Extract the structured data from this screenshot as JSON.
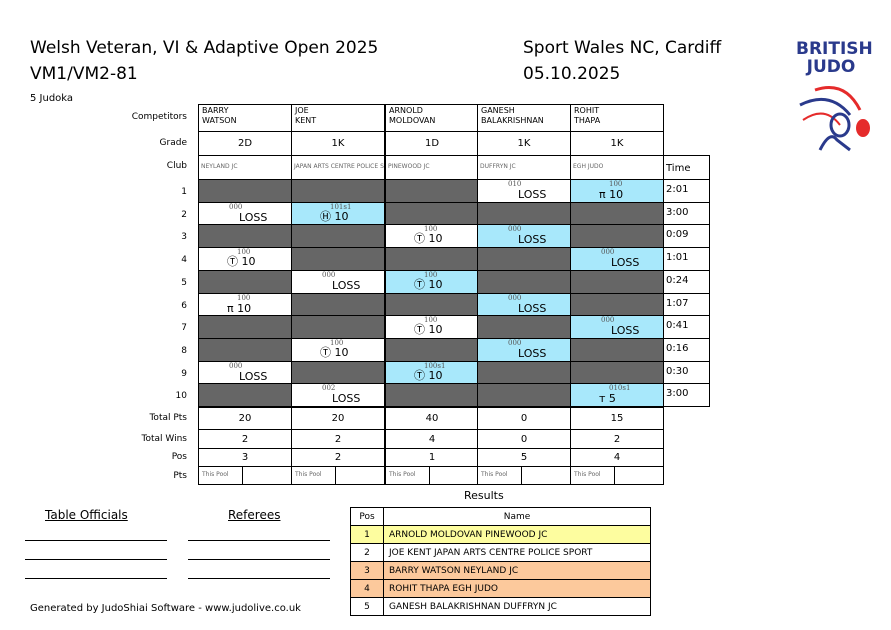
{
  "header": {
    "title": "Welsh Veteran, VI & Adaptive Open 2025",
    "category": "VM1/VM2-81",
    "venue": "Sport Wales NC, Cardiff",
    "date": "05.10.2025",
    "count": "5 Judoka"
  },
  "logo": {
    "text": "BRITISH JUDO",
    "colors": {
      "blue": "#2a3a8c",
      "red": "#e52b2b"
    }
  },
  "labels": {
    "competitors": "Competitors",
    "grade": "Grade",
    "club": "Club",
    "time": "Time",
    "total_pts": "Total Pts",
    "total_wins": "Total Wins",
    "pos": "Pos",
    "pts": "Pts",
    "this_pool": "This Pool"
  },
  "competitors": [
    {
      "first": "BARRY",
      "last": "WATSON",
      "grade": "2D",
      "club": "NEYLAND JC",
      "total_pts": "20",
      "total_wins": "2",
      "pos": "3"
    },
    {
      "first": "JOE",
      "last": "KENT",
      "grade": "1K",
      "club": "JAPAN ARTS CENTRE POLICE SPORT",
      "total_pts": "20",
      "total_wins": "2",
      "pos": "2"
    },
    {
      "first": "ARNOLD",
      "last": "MOLDOVAN",
      "grade": "1D",
      "club": "PINEWOOD JC",
      "total_pts": "40",
      "total_wins": "4",
      "pos": "1"
    },
    {
      "first": "GANESH",
      "last": "BALAKRISHNAN",
      "grade": "1K",
      "club": "DUFFRYN JC",
      "total_pts": "0",
      "total_wins": "0",
      "pos": "5"
    },
    {
      "first": "ROHIT",
      "last": "THAPA",
      "grade": "1K",
      "club": "EGH JUDO",
      "total_pts": "15",
      "total_wins": "2",
      "pos": "4"
    }
  ],
  "matches": [
    {
      "num": "1",
      "time": "2:01",
      "cells": {
        "3": {
          "score": "010",
          "result": "LOSS",
          "color": "white"
        },
        "4": {
          "score": "100",
          "result": "π 10",
          "color": "blue"
        }
      }
    },
    {
      "num": "2",
      "time": "3:00",
      "cells": {
        "0": {
          "score": "000",
          "result": "LOSS",
          "color": "white"
        },
        "1": {
          "score": "101s1",
          "result": "Ⓗ 10",
          "color": "blue"
        }
      }
    },
    {
      "num": "3",
      "time": "0:09",
      "cells": {
        "2": {
          "score": "100",
          "result": "Ⓣ 10",
          "color": "white"
        },
        "3": {
          "score": "000",
          "result": "LOSS",
          "color": "blue"
        }
      }
    },
    {
      "num": "4",
      "time": "1:01",
      "cells": {
        "0": {
          "score": "100",
          "result": "Ⓣ 10",
          "color": "white"
        },
        "4": {
          "score": "000",
          "result": "LOSS",
          "color": "blue"
        }
      }
    },
    {
      "num": "5",
      "time": "0:24",
      "cells": {
        "1": {
          "score": "000",
          "result": "LOSS",
          "color": "white"
        },
        "2": {
          "score": "100",
          "result": "Ⓣ 10",
          "color": "blue"
        }
      }
    },
    {
      "num": "6",
      "time": "1:07",
      "cells": {
        "0": {
          "score": "100",
          "result": "π 10",
          "color": "white"
        },
        "3": {
          "score": "000",
          "result": "LOSS",
          "color": "blue"
        }
      }
    },
    {
      "num": "7",
      "time": "0:41",
      "cells": {
        "2": {
          "score": "100",
          "result": "Ⓣ 10",
          "color": "white"
        },
        "4": {
          "score": "000",
          "result": "LOSS",
          "color": "blue"
        }
      }
    },
    {
      "num": "8",
      "time": "0:16",
      "cells": {
        "1": {
          "score": "100",
          "result": "Ⓣ 10",
          "color": "white"
        },
        "3": {
          "score": "000",
          "result": "LOSS",
          "color": "blue"
        }
      }
    },
    {
      "num": "9",
      "time": "0:30",
      "cells": {
        "0": {
          "score": "000",
          "result": "LOSS",
          "color": "white"
        },
        "2": {
          "score": "100s1",
          "result": "Ⓣ 10",
          "color": "blue"
        }
      }
    },
    {
      "num": "10",
      "time": "3:00",
      "cells": {
        "1": {
          "score": "002",
          "result": "LOSS",
          "color": "white"
        },
        "4": {
          "score": "010s1",
          "result": "т 5",
          "color": "blue"
        }
      }
    }
  ],
  "results": {
    "title": "Results",
    "pos_header": "Pos",
    "name_header": "Name",
    "rows": [
      {
        "pos": "1",
        "name": "ARNOLD MOLDOVAN PINEWOOD JC",
        "color": "#fdfd9f"
      },
      {
        "pos": "2",
        "name": "JOE KENT JAPAN ARTS CENTRE POLICE SPORT",
        "color": "#ffffff"
      },
      {
        "pos": "3",
        "name": "BARRY WATSON NEYLAND JC",
        "color": "#fcc99c"
      },
      {
        "pos": "4",
        "name": "ROHIT THAPA EGH JUDO",
        "color": "#fcc99c"
      },
      {
        "pos": "5",
        "name": "GANESH BALAKRISHNAN DUFFRYN JC",
        "color": "#ffffff"
      }
    ]
  },
  "officials": {
    "table": "Table Officials",
    "referees": "Referees"
  },
  "footer": "Generated by JudoShiai Software - www.judolive.co.uk",
  "colors": {
    "blue_cell": "#a8e8fb",
    "dark_cell": "#666666"
  }
}
